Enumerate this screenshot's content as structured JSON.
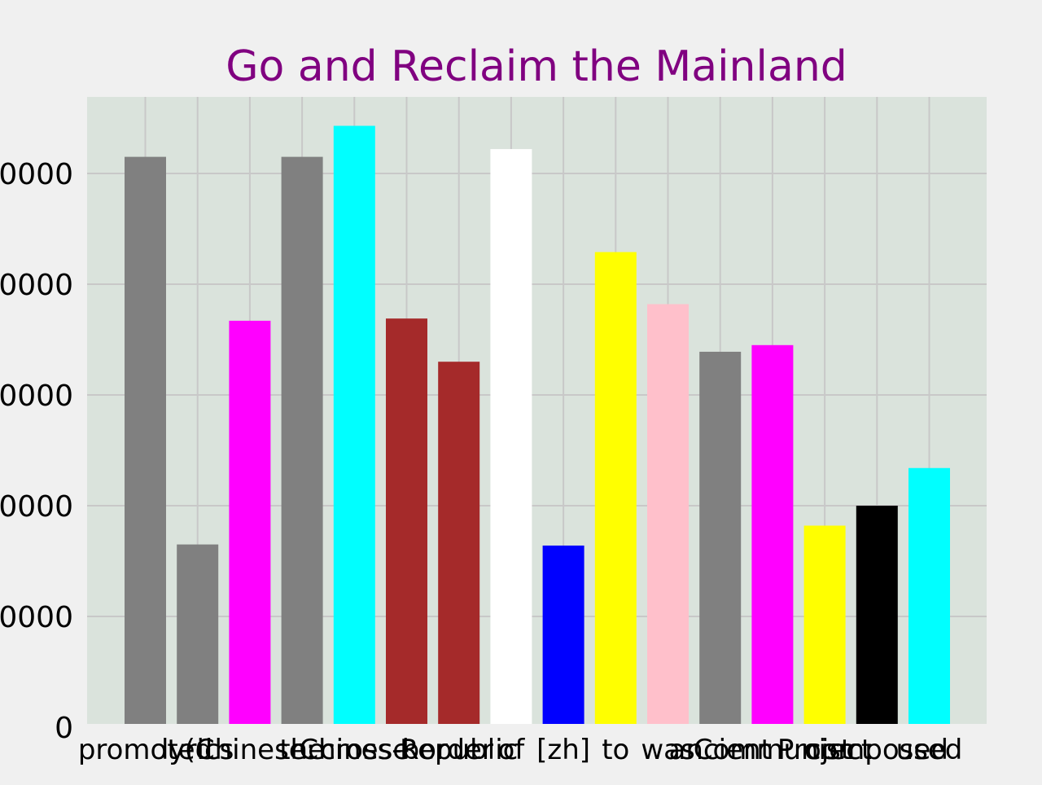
{
  "chart_data": {
    "type": "bar",
    "title": "Go and Reclaim the Mainland",
    "xlabel": "",
    "ylabel": "",
    "categories": [
      "promoted",
      "lyrics",
      "(Chinese:",
      "the",
      "Chinese",
      "cross-border",
      "Republic",
      "of",
      "[zh]",
      "to",
      "was",
      "ancient",
      "Communist",
      "Project",
      "composed",
      "used"
    ],
    "values": [
      51500,
      16500,
      36700,
      51500,
      54300,
      36900,
      33000,
      52200,
      16400,
      42900,
      38200,
      33900,
      34500,
      18200,
      20000,
      23400
    ],
    "colors": [
      "#808080",
      "#808080",
      "#ff00ff",
      "#808080",
      "#00ffff",
      "#a52a2a",
      "#a52a2a",
      "#ffffff",
      "#0000ff",
      "#ffff00",
      "#ffc0cb",
      "#808080",
      "#ff00ff",
      "#ffff00",
      "#000000",
      "#00ffff"
    ],
    "ylim": [
      0,
      56500
    ],
    "yticks": [
      0,
      10000,
      20000,
      30000,
      40000,
      50000
    ],
    "ytick_labels": [
      "0",
      "0000",
      "0000",
      "0000",
      "0000",
      "0000"
    ],
    "grid": true,
    "background": "#dae3dc",
    "title_color": "#800080"
  }
}
